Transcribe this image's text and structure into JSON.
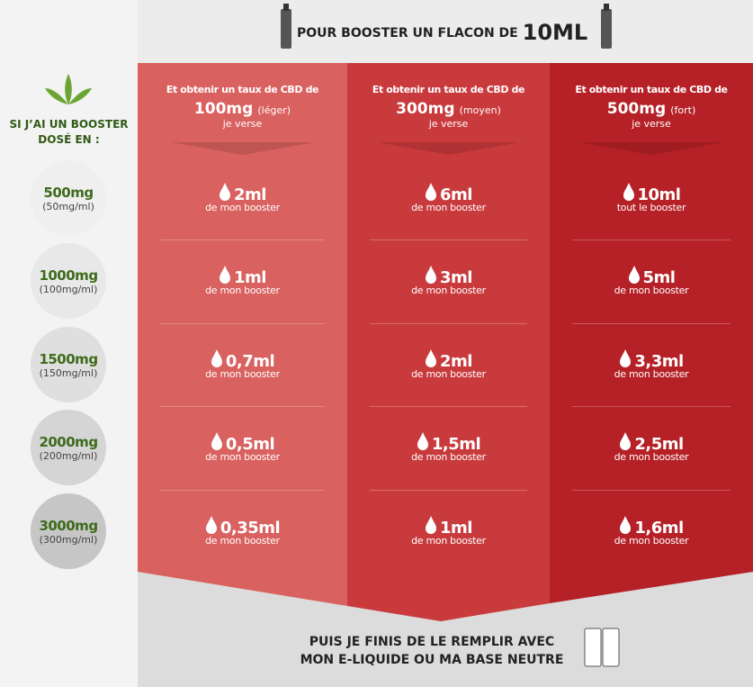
{
  "header": {
    "text": "POUR BOOSTER UN FLACON DE",
    "volume": "10ML"
  },
  "left": {
    "title": [
      "SI J’AI UN BOOSTER",
      "DOSÉ EN :"
    ],
    "rows": [
      {
        "dose": "500mg",
        "concentration": "(50mg/ml)"
      },
      {
        "dose": "1000mg",
        "concentration": "(100mg/ml)"
      },
      {
        "dose": "1500mg",
        "concentration": "(150mg/ml)"
      },
      {
        "dose": "2000mg",
        "concentration": "(200mg/ml)"
      },
      {
        "dose": "3000mg",
        "concentration": "(300mg/ml)"
      }
    ]
  },
  "columns": [
    {
      "intro": "Et obtenir un taux de CBD de",
      "rate": "100mg",
      "level": "(léger)",
      "action": "je verse",
      "cells": [
        {
          "amount": "2ml",
          "note": "de mon booster"
        },
        {
          "amount": "1ml",
          "note": "de mon booster"
        },
        {
          "amount": "0,7ml",
          "note": "de mon booster"
        },
        {
          "amount": "0,5ml",
          "note": "de mon booster"
        },
        {
          "amount": "0,35ml",
          "note": "de mon booster"
        }
      ]
    },
    {
      "intro": "Et obtenir un taux de CBD de",
      "rate": "300mg",
      "level": "(moyen)",
      "action": "je verse",
      "cells": [
        {
          "amount": "6ml",
          "note": "de mon booster"
        },
        {
          "amount": "3ml",
          "note": "de mon booster"
        },
        {
          "amount": "2ml",
          "note": "de mon booster"
        },
        {
          "amount": "1,5ml",
          "note": "de mon booster"
        },
        {
          "amount": "1ml",
          "note": "de mon booster"
        }
      ]
    },
    {
      "intro": "Et obtenir un taux de CBD de",
      "rate": "500mg",
      "level": "(fort)",
      "action": "je verse",
      "cells": [
        {
          "amount": "10ml",
          "note": "tout le booster"
        },
        {
          "amount": "5ml",
          "note": "de mon booster"
        },
        {
          "amount": "3,3ml",
          "note": "de mon booster"
        },
        {
          "amount": "2,5ml",
          "note": "de mon booster"
        },
        {
          "amount": "1,6ml",
          "note": "de mon booster"
        }
      ]
    }
  ],
  "footer": {
    "lines": [
      "PUIS JE FINIS DE LE REMPLIR AVEC",
      "MON E-LIQUIDE OU MA BASE NEUTRE"
    ]
  }
}
